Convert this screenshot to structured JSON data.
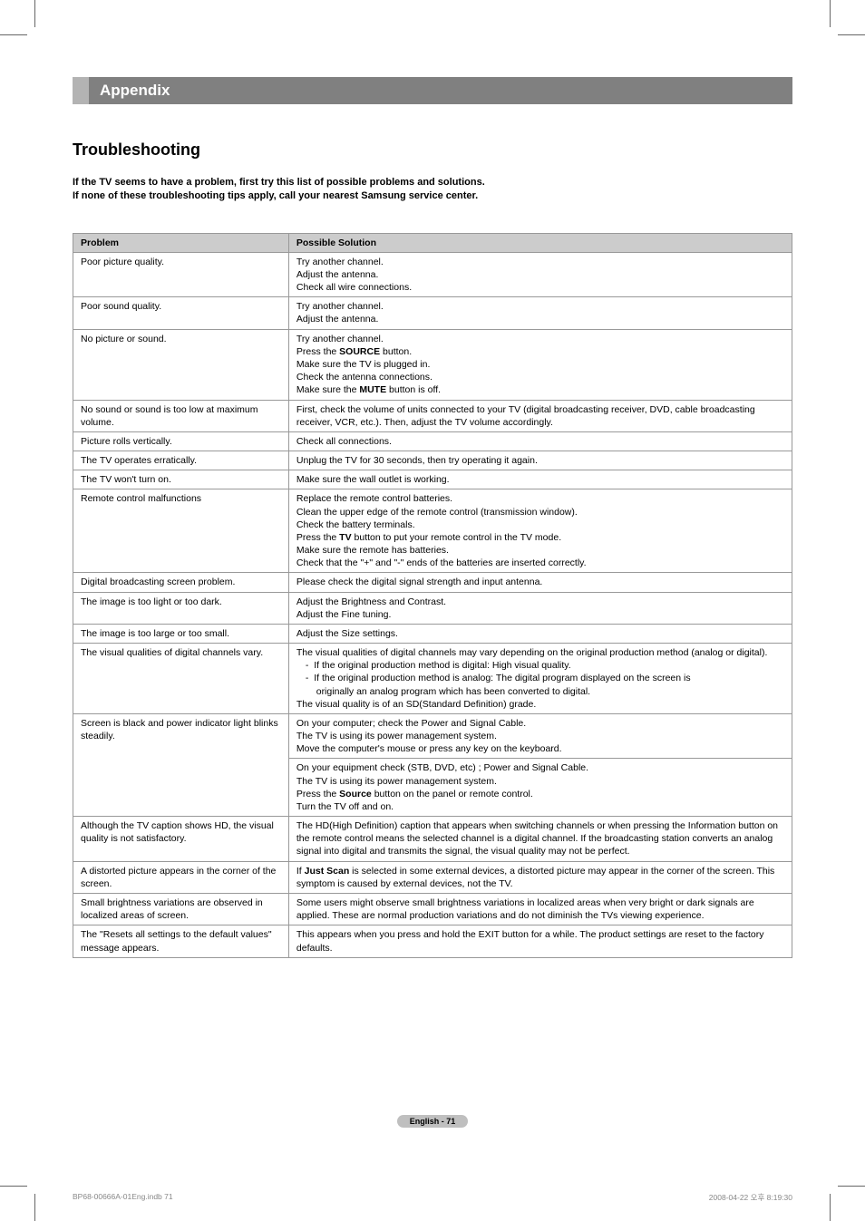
{
  "header": {
    "appendix_label": "Appendix"
  },
  "section": {
    "title": "Troubleshooting",
    "intro_line1": "If the TV seems to have a problem, first try this list of possible problems and solutions.",
    "intro_line2": "If none of these troubleshooting tips apply, call your nearest Samsung service center."
  },
  "table": {
    "header_problem": "Problem",
    "header_solution": "Possible Solution",
    "rows": [
      {
        "problem": "Poor picture quality.",
        "solution_html": "Try another channel.<br>Adjust the antenna.<br>Check all wire connections."
      },
      {
        "problem": "Poor sound quality.",
        "solution_html": "Try another channel.<br>Adjust the antenna."
      },
      {
        "problem": "No picture or sound.",
        "solution_html": "Try another channel.<br>Press the <span class=\"bold-inline\">SOURCE</span> button.<br>Make sure the TV is plugged in.<br>Check the antenna connections.<br>Make sure the <span class=\"bold-inline\">MUTE</span> button is off."
      },
      {
        "problem": "No sound or sound is too low at maximum volume.",
        "solution_html": "First, check the volume of units connected to your TV (digital broadcasting receiver, DVD, cable broadcasting receiver, VCR, etc.). Then, adjust the TV volume accordingly."
      },
      {
        "problem": "Picture rolls vertically.",
        "solution_html": "Check all connections."
      },
      {
        "problem": "The TV operates erratically.",
        "solution_html": "Unplug the TV for 30 seconds, then try operating it again."
      },
      {
        "problem": "The TV won't turn on.",
        "solution_html": "Make sure the wall outlet is working."
      },
      {
        "problem": "Remote control malfunctions",
        "solution_html": "Replace the remote control batteries.<br>Clean the upper edge of the remote control (transmission window).<br>Check the battery terminals.<br>Press the <span class=\"bold-inline\">TV</span> button to put your remote control in the TV mode.<br>Make sure the remote has batteries.<br>Check that the \"+\" and \"-\" ends of the batteries are inserted correctly."
      },
      {
        "problem": "Digital broadcasting screen problem.",
        "solution_html": "Please check the digital signal strength and input antenna."
      },
      {
        "problem": "The image is too light or too dark.",
        "solution_html": "Adjust the Brightness and Contrast.<br>Adjust the Fine tuning."
      },
      {
        "problem": "The image is too large or too small.",
        "solution_html": "Adjust the Size settings."
      },
      {
        "problem": "The visual qualities of digital channels vary.",
        "solution_html": "The visual qualities of digital channels may vary depending on the original production method (analog or digital).<br><span class=\"indent-bullet\">-&nbsp;&nbsp;If the original production method is digital: High visual quality.</span><br><span class=\"indent-bullet\">-&nbsp;&nbsp;If the original production method is analog: The digital program displayed on the screen is</span><br><span class=\"indent-bullet-line\">&nbsp;&nbsp;originally an analog program which has been converted to digital.</span><br>The visual quality is of an SD(Standard Definition) grade."
      },
      {
        "problem": "Screen is black and power indicator light blinks steadily.",
        "rowspan": 2,
        "solution_html": "On your computer; check the Power and Signal Cable.<br>The TV is using its power management system.<br>Move the computer's mouse or press any key on the keyboard."
      },
      {
        "skip_problem": true,
        "solution_html": "On your equipment check (STB, DVD, etc) ; Power and Signal Cable.<br>The TV is using its power management system.<br>Press the <span class=\"bold-inline\">Source</span> button on the panel or remote control.<br>Turn the TV off and on."
      },
      {
        "problem": "Although the TV caption shows HD, the visual quality is not satisfactory.",
        "solution_html": "The HD(High Definition) caption that appears when switching channels or when pressing the Information button on the remote control means the selected channel is a digital channel. If the broadcasting station converts an analog signal into digital and transmits the signal, the visual quality may not be perfect."
      },
      {
        "problem": "A distorted picture appears in the corner of the screen.",
        "solution_html": "If <span class=\"bold-inline\">Just Scan</span> is selected in some external devices, a distorted picture may appear in the corner of the screen. This symptom is caused by external devices, not the TV."
      },
      {
        "problem": "Small brightness variations are observed in localized areas of screen.",
        "solution_html": "Some users might observe small brightness variations in localized areas when very bright or dark signals are applied. These are normal production variations and do not diminish the TVs viewing experience."
      },
      {
        "problem": "The \"Resets all settings to the default values\" message appears.",
        "solution_html": "This appears when you press and hold the EXIT button for a while. The product settings are reset to the factory defaults."
      }
    ]
  },
  "footer": {
    "page_label": "English - 71",
    "meta_left": "BP68-00666A-01Eng.indb   71",
    "meta_right": "2008-04-22   오후 8:19:30"
  }
}
